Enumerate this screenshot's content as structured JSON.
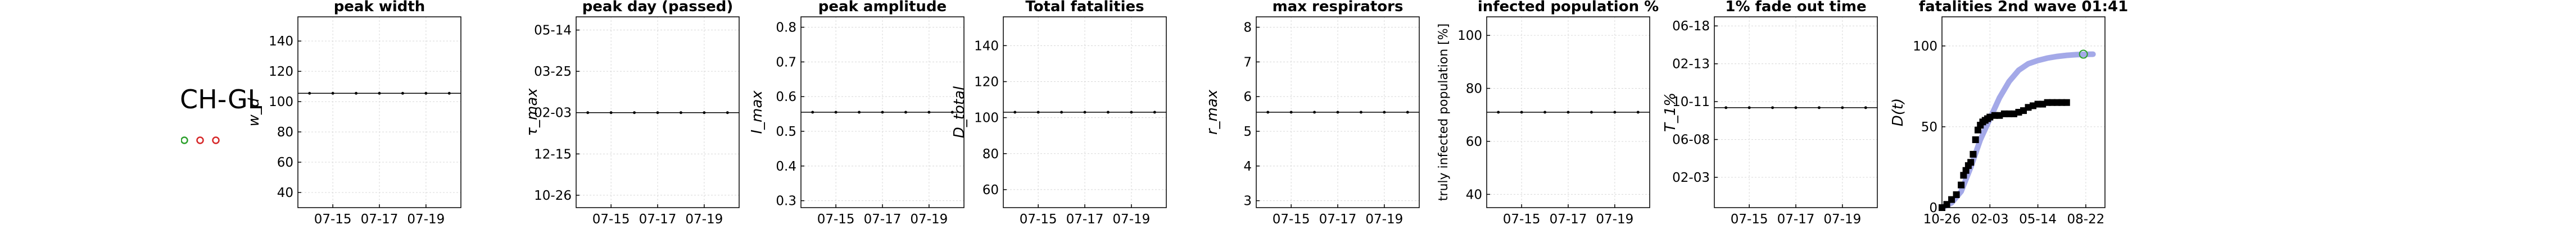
{
  "region": "CH-GL",
  "status_dots": [
    "#2ca02c",
    "#d62728",
    "#d62728"
  ],
  "chart_data": [
    {
      "type": "line",
      "title": "peak width",
      "ylabel": "w_d",
      "x_ticks": [
        "07-15",
        "07-17",
        "07-19"
      ],
      "x": [
        "07-14",
        "07-15",
        "07-16",
        "07-17",
        "07-18",
        "07-19",
        "07-20"
      ],
      "y_ticks": [
        "40",
        "60",
        "80",
        "100",
        "120",
        "140"
      ],
      "y_tick_values": [
        40,
        60,
        80,
        100,
        120,
        140
      ],
      "ylim": [
        30,
        156
      ],
      "values": [
        105.5,
        105.5,
        105.5,
        105.5,
        105.5,
        105.5,
        105.5
      ],
      "ref": 105.5
    },
    {
      "type": "line",
      "title": "peak day (passed)",
      "ylabel": "τ_max",
      "x_ticks": [
        "07-15",
        "07-17",
        "07-19"
      ],
      "x": [
        "07-14",
        "07-15",
        "07-16",
        "07-17",
        "07-18",
        "07-19",
        "07-20"
      ],
      "y_ticks": [
        "10-26",
        "12-15",
        "02-03",
        "03-25",
        "05-14"
      ],
      "y_tick_values": [
        0,
        50,
        100,
        150,
        200
      ],
      "ylim": [
        -15,
        216
      ],
      "values": [
        100,
        100,
        100,
        100,
        100,
        100,
        100
      ],
      "ref": 100
    },
    {
      "type": "line",
      "title": "peak amplitude",
      "ylabel": "I_max",
      "x_ticks": [
        "07-15",
        "07-17",
        "07-19"
      ],
      "x": [
        "07-14",
        "07-15",
        "07-16",
        "07-17",
        "07-18",
        "07-19",
        "07-20"
      ],
      "y_ticks": [
        "0.3",
        "0.4",
        "0.5",
        "0.6",
        "0.7",
        "0.8"
      ],
      "y_tick_values": [
        0.3,
        0.4,
        0.5,
        0.6,
        0.7,
        0.8
      ],
      "ylim": [
        0.28,
        0.83
      ],
      "values": [
        0.555,
        0.555,
        0.555,
        0.555,
        0.555,
        0.555,
        0.555
      ],
      "ref": 0.555
    },
    {
      "type": "line",
      "title": "Total fatalities",
      "ylabel": "D_total",
      "x_ticks": [
        "07-15",
        "07-17",
        "07-19"
      ],
      "x": [
        "07-14",
        "07-15",
        "07-16",
        "07-17",
        "07-18",
        "07-19",
        "07-20"
      ],
      "y_ticks": [
        "60",
        "80",
        "100",
        "120",
        "140"
      ],
      "y_tick_values": [
        60,
        80,
        100,
        120,
        140
      ],
      "ylim": [
        50,
        156
      ],
      "values": [
        103,
        103,
        103,
        103,
        103,
        103,
        103
      ],
      "ref": 103
    },
    {
      "type": "line",
      "title": "max respirators",
      "ylabel": "r_max",
      "x_ticks": [
        "07-15",
        "07-17",
        "07-19"
      ],
      "x": [
        "07-14",
        "07-15",
        "07-16",
        "07-17",
        "07-18",
        "07-19",
        "07-20"
      ],
      "y_ticks": [
        "3",
        "4",
        "5",
        "6",
        "7",
        "8"
      ],
      "y_tick_values": [
        3,
        4,
        5,
        6,
        7,
        8
      ],
      "ylim": [
        2.8,
        8.3
      ],
      "values": [
        5.55,
        5.55,
        5.55,
        5.55,
        5.55,
        5.55,
        5.55
      ],
      "ref": 5.55
    },
    {
      "type": "line",
      "title": "infected population %",
      "ylabel": "truly infected population [%]",
      "x_ticks": [
        "07-15",
        "07-17",
        "07-19"
      ],
      "x": [
        "07-14",
        "07-15",
        "07-16",
        "07-17",
        "07-18",
        "07-19",
        "07-20"
      ],
      "y_ticks": [
        "40",
        "60",
        "80",
        "100"
      ],
      "y_tick_values": [
        40,
        60,
        80,
        100
      ],
      "ylim": [
        35,
        107
      ],
      "values": [
        71,
        71,
        71,
        71,
        71,
        71,
        71
      ],
      "ref": 71
    },
    {
      "type": "line",
      "title": "1% fade out time",
      "ylabel": "T_1%",
      "x_ticks": [
        "07-15",
        "07-17",
        "07-19"
      ],
      "x": [
        "07-14",
        "07-15",
        "07-16",
        "07-17",
        "07-18",
        "07-19",
        "07-20"
      ],
      "y_ticks": [
        "02-03",
        "06-08",
        "10-11",
        "02-13",
        "06-18"
      ],
      "y_tick_values": [
        100,
        225,
        350,
        475,
        600
      ],
      "ylim": [
        0,
        630
      ],
      "values": [
        330,
        330,
        330,
        330,
        330,
        330,
        330
      ],
      "ref": 330
    },
    {
      "type": "scatter",
      "title": "fatalities 2nd wave 01:41",
      "ylabel": "D(t)",
      "x_ticks": [
        "10-26",
        "02-03",
        "05-14",
        "08-22"
      ],
      "x_tick_values": [
        0,
        100,
        200,
        300
      ],
      "xlim": [
        0,
        340
      ],
      "y_ticks": [
        "0",
        "50",
        "100"
      ],
      "y_tick_values": [
        0,
        50,
        100
      ],
      "ylim": [
        0,
        118
      ],
      "series": [
        {
          "kind": "model",
          "color": "#9aa0e6",
          "points": [
            [
              0,
              0
            ],
            [
              20,
              3
            ],
            [
              40,
              10
            ],
            [
              60,
              25
            ],
            [
              80,
              42
            ],
            [
              100,
              55
            ],
            [
              120,
              68
            ],
            [
              140,
              78
            ],
            [
              160,
              85
            ],
            [
              180,
              89
            ],
            [
              200,
              91
            ],
            [
              220,
              92.5
            ],
            [
              240,
              93.5
            ],
            [
              260,
              94.2
            ],
            [
              280,
              94.6
            ],
            [
              300,
              94.8
            ],
            [
              315,
              94.9
            ]
          ]
        },
        {
          "kind": "observed",
          "color": "#000000",
          "points": [
            [
              0,
              0
            ],
            [
              10,
              2
            ],
            [
              20,
              5
            ],
            [
              30,
              8
            ],
            [
              40,
              14
            ],
            [
              45,
              20
            ],
            [
              50,
              23
            ],
            [
              55,
              26
            ],
            [
              60,
              28
            ],
            [
              65,
              33
            ],
            [
              70,
              42
            ],
            [
              75,
              48
            ],
            [
              80,
              51
            ],
            [
              85,
              53
            ],
            [
              90,
              54
            ],
            [
              95,
              55
            ],
            [
              100,
              56
            ],
            [
              110,
              57
            ],
            [
              120,
              57
            ],
            [
              130,
              58
            ],
            [
              140,
              58
            ],
            [
              150,
              58
            ],
            [
              160,
              59
            ],
            [
              170,
              60
            ],
            [
              180,
              62
            ],
            [
              190,
              63
            ],
            [
              200,
              64
            ],
            [
              210,
              64
            ],
            [
              220,
              65
            ],
            [
              230,
              65
            ],
            [
              240,
              65
            ],
            [
              250,
              65
            ],
            [
              260,
              65
            ]
          ]
        }
      ]
    }
  ]
}
